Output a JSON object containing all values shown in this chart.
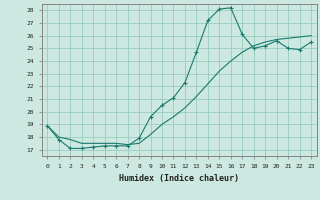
{
  "xlabel": "Humidex (Indice chaleur)",
  "ylabel": "",
  "bg_color": "#cce8e0",
  "grid_color": "#99ccc0",
  "line_color": "#1a7a6e",
  "xlim": [
    -0.5,
    23.5
  ],
  "ylim": [
    16.5,
    28.5
  ],
  "yticks": [
    17,
    18,
    19,
    20,
    21,
    22,
    23,
    24,
    25,
    26,
    27,
    28
  ],
  "xticks": [
    0,
    1,
    2,
    3,
    4,
    5,
    6,
    7,
    8,
    9,
    10,
    11,
    12,
    13,
    14,
    15,
    16,
    17,
    18,
    19,
    20,
    21,
    22,
    23
  ],
  "line1_x": [
    0,
    1,
    2,
    3,
    4,
    5,
    6,
    7,
    8,
    9,
    10,
    11,
    12,
    13,
    14,
    15,
    16,
    17,
    18,
    19,
    20,
    21,
    22,
    23
  ],
  "line1_y": [
    18.9,
    17.8,
    17.1,
    17.1,
    17.2,
    17.3,
    17.3,
    17.3,
    17.9,
    19.6,
    20.5,
    21.1,
    22.3,
    24.7,
    27.2,
    28.1,
    28.2,
    26.1,
    25.0,
    25.2,
    25.6,
    25.0,
    24.9,
    25.5
  ],
  "line2_x": [
    0,
    1,
    2,
    3,
    4,
    5,
    6,
    7,
    8,
    9,
    10,
    11,
    12,
    13,
    14,
    15,
    16,
    17,
    18,
    19,
    20,
    21,
    22,
    23
  ],
  "line2_y": [
    18.9,
    18.0,
    17.8,
    17.5,
    17.5,
    17.5,
    17.5,
    17.4,
    17.5,
    18.2,
    19.0,
    19.6,
    20.3,
    21.2,
    22.2,
    23.2,
    24.0,
    24.7,
    25.2,
    25.5,
    25.7,
    25.8,
    25.9,
    26.0
  ]
}
